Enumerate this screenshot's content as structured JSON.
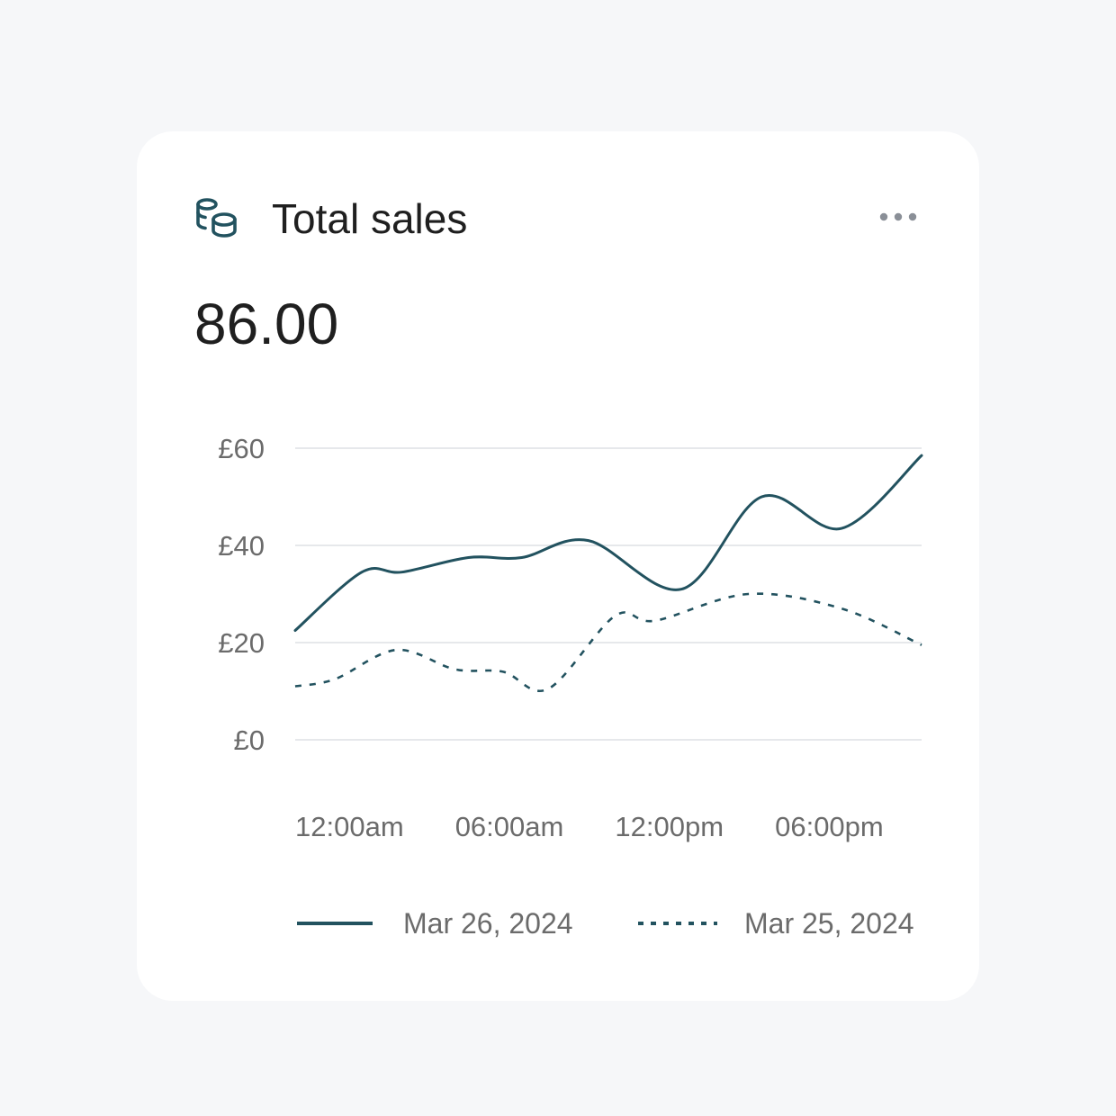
{
  "card": {
    "title": "Total sales",
    "value": "86.00",
    "icon": "coins-icon",
    "menu_icon": "more-horizontal-icon"
  },
  "colors": {
    "background": "#f6f7f9",
    "card": "#ffffff",
    "accent": "#22525f",
    "grid": "#e6e8eb",
    "label": "#6b6b6b",
    "icon_muted": "#8a8f97"
  },
  "chart_data": {
    "type": "line",
    "title": "",
    "xlabel": "",
    "ylabel": "",
    "ylim": [
      0,
      60
    ],
    "xlim": [
      0,
      23.5
    ],
    "y_ticks": [
      0,
      20,
      40,
      60
    ],
    "y_tick_labels": [
      "£0",
      "£20",
      "£40",
      "£60"
    ],
    "x_ticks": [
      0,
      6,
      12,
      18
    ],
    "x_tick_labels": [
      "12:00am",
      "06:00am",
      "12:00pm",
      "06:00pm"
    ],
    "grid": true,
    "legend": "bottom",
    "series": [
      {
        "name": "Mar 26, 2024",
        "style": "solid",
        "x": [
          0,
          2.5,
          4,
          6.5,
          8.5,
          11,
          14.5,
          17.5,
          20.5,
          23.5
        ],
        "y": [
          22.5,
          34.5,
          34.5,
          37.5,
          37.5,
          41,
          31,
          50,
          43.5,
          58.5
        ]
      },
      {
        "name": "Mar 25, 2024",
        "style": "dotted",
        "x": [
          0,
          1.5,
          3.8,
          6,
          7.8,
          9.5,
          12,
          13.5,
          17,
          20.5,
          23.5
        ],
        "y": [
          11,
          12.5,
          18.5,
          14.5,
          14,
          10.5,
          25.5,
          24.5,
          30,
          27,
          19.5
        ]
      }
    ]
  }
}
